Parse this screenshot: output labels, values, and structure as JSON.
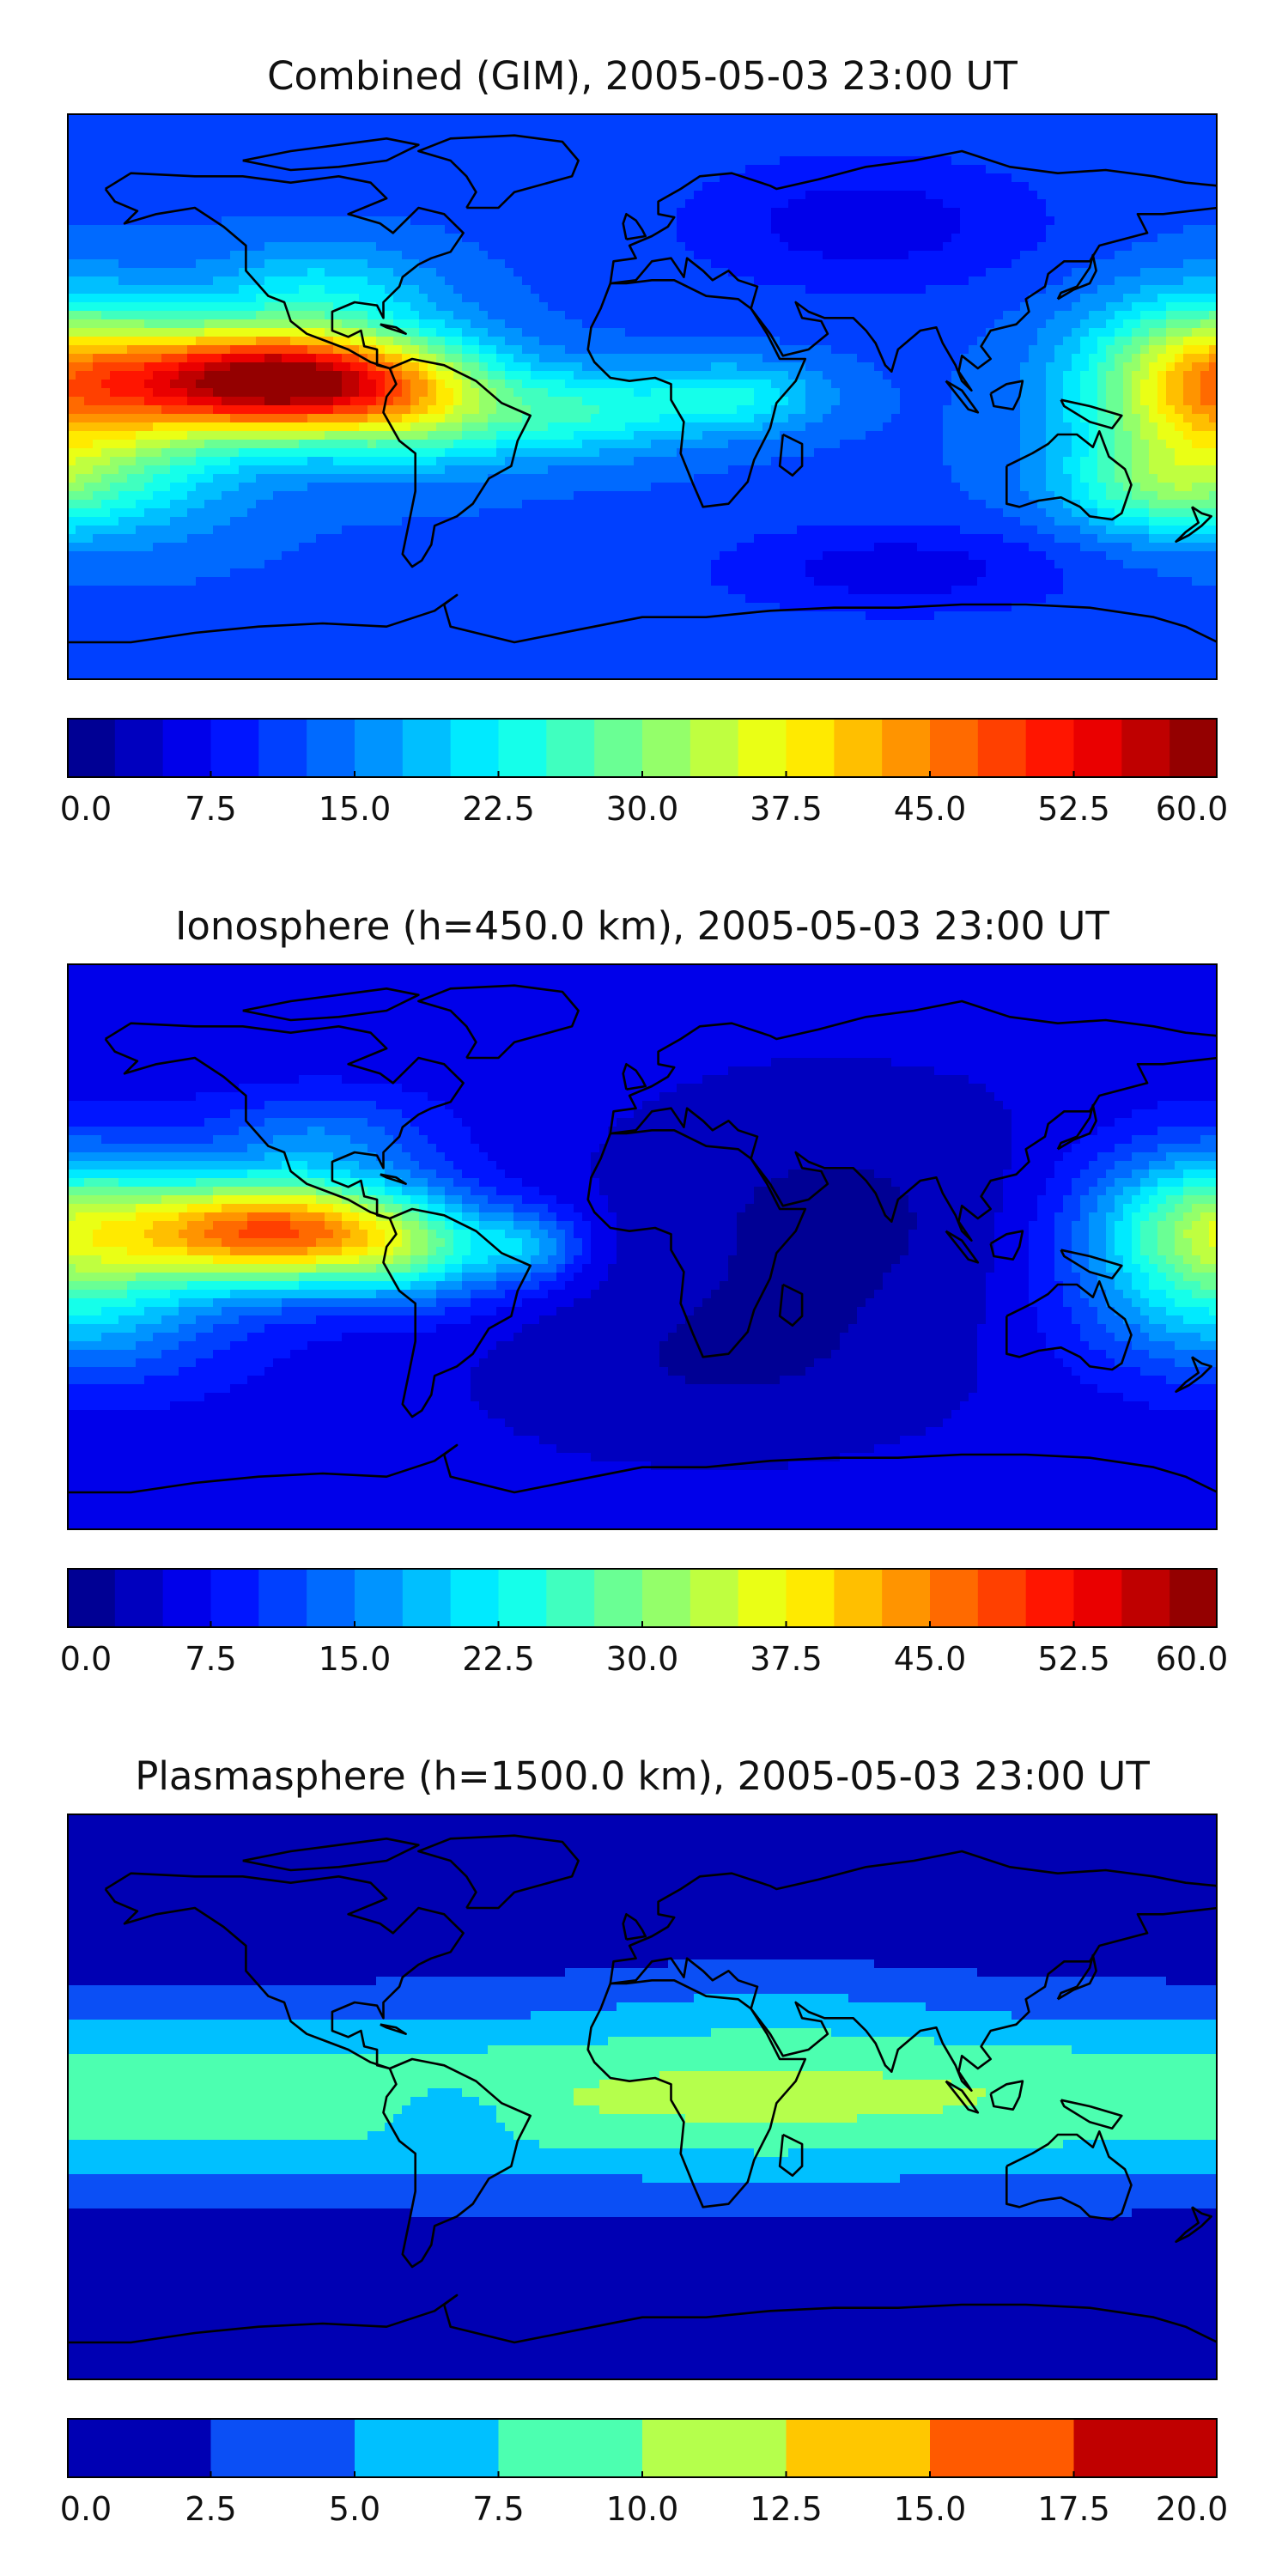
{
  "panels": [
    {
      "title": "Combined (GIM), 2005-05-03 23:00 UT",
      "colorbar": {
        "min": 0,
        "max": 60,
        "levels": 24,
        "ticks": [
          "0.0",
          "7.5",
          "15.0",
          "22.5",
          "30.0",
          "37.5",
          "45.0",
          "52.5",
          "60.0"
        ]
      },
      "field": {
        "base": 12,
        "blobs": [
          {
            "lon": -115,
            "lat": 5,
            "amp": 48,
            "sx": 32,
            "sy": 12
          },
          {
            "lon": -70,
            "lat": -2,
            "amp": 14,
            "sx": 22,
            "sy": 14
          },
          {
            "lon": -20,
            "lat": -5,
            "amp": 12,
            "sx": 25,
            "sy": 10
          },
          {
            "lon": 30,
            "lat": 0,
            "amp": 10,
            "sx": 20,
            "sy": 8
          },
          {
            "lon": 178,
            "lat": 5,
            "amp": 28,
            "sx": 28,
            "sy": 18
          },
          {
            "lon": -175,
            "lat": -25,
            "amp": 10,
            "sx": 35,
            "sy": 15
          },
          {
            "lon": 160,
            "lat": -30,
            "amp": 8,
            "sx": 20,
            "sy": 10
          },
          {
            "lon": -100,
            "lat": 35,
            "amp": 8,
            "sx": 25,
            "sy": 10
          },
          {
            "lon": 70,
            "lat": 55,
            "amp": -6,
            "sx": 40,
            "sy": 15
          },
          {
            "lon": 80,
            "lat": -55,
            "amp": -6,
            "sx": 40,
            "sy": 10
          }
        ]
      }
    },
    {
      "title": "Ionosphere  (h=450.0 km), 2005-05-03 23:00 UT",
      "colorbar": {
        "min": 0,
        "max": 60,
        "levels": 24,
        "ticks": [
          "0.0",
          "7.5",
          "15.0",
          "22.5",
          "30.0",
          "37.5",
          "45.0",
          "52.5",
          "60.0"
        ]
      },
      "field": {
        "base": 6,
        "blobs": [
          {
            "lon": -115,
            "lat": 5,
            "amp": 40,
            "sx": 32,
            "sy": 12
          },
          {
            "lon": -70,
            "lat": -2,
            "amp": 12,
            "sx": 20,
            "sy": 12
          },
          {
            "lon": -35,
            "lat": 0,
            "amp": 10,
            "sx": 12,
            "sy": 8
          },
          {
            "lon": 178,
            "lat": 5,
            "amp": 24,
            "sx": 28,
            "sy": 18
          },
          {
            "lon": -175,
            "lat": -25,
            "amp": 8,
            "sx": 35,
            "sy": 15
          },
          {
            "lon": -100,
            "lat": 35,
            "amp": 8,
            "sx": 25,
            "sy": 10
          },
          {
            "lon": 60,
            "lat": 10,
            "amp": -4,
            "sx": 50,
            "sy": 30
          },
          {
            "lon": 20,
            "lat": -40,
            "amp": -3,
            "sx": 50,
            "sy": 20
          }
        ]
      }
    },
    {
      "title": "Plasmasphere (h=1500.0 km), 2005-05-03 23:00 UT",
      "colorbar": {
        "min": 0,
        "max": 20,
        "levels": 8,
        "ticks": [
          "0.0",
          "2.5",
          "5.0",
          "7.5",
          "10.0",
          "12.5",
          "15.0",
          "17.5",
          "20.0"
        ]
      },
      "field": {
        "base": 1,
        "band": {
          "lat": 0,
          "amp": 8.2,
          "sy": 28
        },
        "blobs": [
          {
            "lon": 40,
            "lat": 0,
            "amp": 1.5,
            "sx": 60,
            "sy": 20
          },
          {
            "lon": -60,
            "lat": -5,
            "amp": -3,
            "sx": 15,
            "sy": 8
          },
          {
            "lon": 40,
            "lat": 30,
            "amp": 1.5,
            "sx": 40,
            "sy": 10
          }
        ]
      }
    }
  ],
  "colors": {
    "jet": [
      "#00007f",
      "#0000ff",
      "#007fff",
      "#00ffff",
      "#7fff7f",
      "#ffff00",
      "#ff7f00",
      "#ff0000",
      "#7f0000"
    ],
    "plasma_levels": [
      "#0000b3",
      "#0b4ff5",
      "#00c0ff",
      "#4cffb0",
      "#b5ff4c",
      "#ffc700",
      "#ff5a00",
      "#c00000"
    ],
    "coastline": "#000000"
  }
}
